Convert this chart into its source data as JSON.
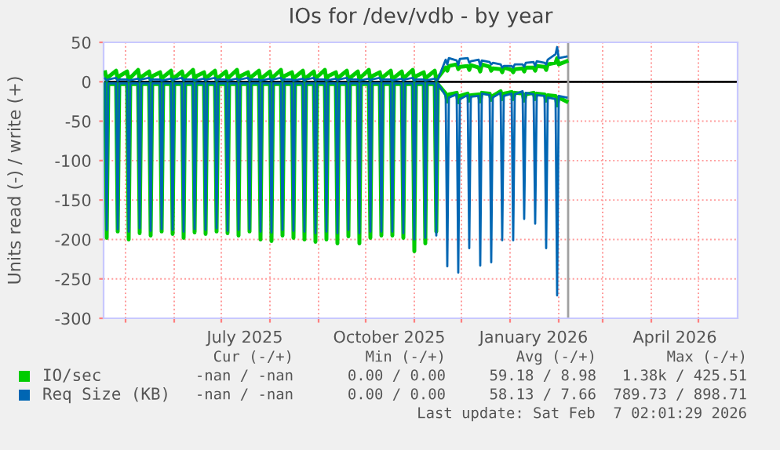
{
  "chart_data": {
    "type": "line",
    "title": "IOs for /dev/vdb - by year",
    "ylabel": "Units read (-) / write (+)",
    "x": [
      "2025-04-18",
      "2025-04-19",
      "2025-04-20",
      "2025-04-25",
      "2025-04-26",
      "2025-04-27",
      "2025-05-02",
      "2025-05-03",
      "2025-05-04",
      "2025-05-09",
      "2025-05-10",
      "2025-05-11",
      "2025-05-16",
      "2025-05-17",
      "2025-05-18",
      "2025-05-23",
      "2025-05-24",
      "2025-05-25",
      "2025-05-30",
      "2025-05-31",
      "2025-06-01",
      "2025-06-06",
      "2025-06-07",
      "2025-06-08",
      "2025-06-13",
      "2025-06-14",
      "2025-06-15",
      "2025-06-20",
      "2025-06-21",
      "2025-06-22",
      "2025-06-27",
      "2025-06-28",
      "2025-06-29",
      "2025-07-04",
      "2025-07-05",
      "2025-07-06",
      "2025-07-11",
      "2025-07-12",
      "2025-07-13",
      "2025-07-18",
      "2025-07-19",
      "2025-07-20",
      "2025-07-25",
      "2025-07-26",
      "2025-07-27",
      "2025-08-01",
      "2025-08-02",
      "2025-08-03",
      "2025-08-08",
      "2025-08-09",
      "2025-08-10",
      "2025-08-15",
      "2025-08-16",
      "2025-08-17",
      "2025-08-22",
      "2025-08-23",
      "2025-08-24",
      "2025-08-29",
      "2025-08-30",
      "2025-08-31",
      "2025-09-05",
      "2025-09-06",
      "2025-09-07",
      "2025-09-12",
      "2025-09-13",
      "2025-09-14",
      "2025-09-19",
      "2025-09-20",
      "2025-09-21",
      "2025-09-26",
      "2025-09-27",
      "2025-09-28",
      "2025-10-03",
      "2025-10-04",
      "2025-10-05",
      "2025-10-10",
      "2025-10-11",
      "2025-10-12",
      "2025-10-17",
      "2025-10-18",
      "2025-10-19",
      "2025-10-24",
      "2025-10-25",
      "2025-10-26",
      "2025-10-31",
      "2025-11-01",
      "2025-11-02",
      "2025-11-07",
      "2025-11-08",
      "2025-11-09",
      "2025-11-14",
      "2025-11-15",
      "2025-11-16",
      "2025-11-21",
      "2025-11-22",
      "2025-11-23",
      "2025-11-28",
      "2025-11-29",
      "2025-11-30",
      "2025-12-05",
      "2025-12-06",
      "2025-12-07",
      "2025-12-12",
      "2025-12-13",
      "2025-12-14",
      "2025-12-19",
      "2025-12-20",
      "2025-12-21",
      "2025-12-26",
      "2025-12-27",
      "2025-12-28",
      "2026-01-02",
      "2026-01-03",
      "2026-01-04",
      "2026-01-09",
      "2026-01-10",
      "2026-01-11",
      "2026-01-16",
      "2026-01-17",
      "2026-01-18",
      "2026-01-23",
      "2026-01-24",
      "2026-01-25",
      "2026-01-30",
      "2026-01-31",
      "2026-02-01",
      "2026-02-06"
    ],
    "series": [
      {
        "name": "IO/sec",
        "color": "#00cc00",
        "values": [
          12,
          2,
          6,
          14,
          3,
          7,
          13,
          2,
          5,
          15,
          3,
          6,
          13,
          2,
          7,
          12,
          3,
          6,
          14,
          2,
          5,
          13,
          3,
          6,
          15,
          2,
          7,
          12,
          3,
          6,
          14,
          2,
          5,
          13,
          3,
          6,
          15,
          2,
          7,
          12,
          3,
          6,
          14,
          2,
          5,
          13,
          3,
          6,
          15,
          2,
          7,
          12,
          3,
          6,
          14,
          2,
          5,
          13,
          3,
          6,
          15,
          2,
          7,
          12,
          3,
          6,
          14,
          2,
          5,
          13,
          3,
          6,
          15,
          2,
          7,
          12,
          3,
          6,
          14,
          2,
          5,
          13,
          3,
          6,
          15,
          2,
          7,
          12,
          3,
          6,
          14,
          2,
          5,
          18,
          14,
          20,
          22,
          16,
          19,
          20,
          15,
          21,
          18,
          13,
          22,
          19,
          14,
          17,
          16,
          12,
          18,
          15,
          12,
          16,
          17,
          13,
          18,
          18,
          14,
          20,
          19,
          15,
          22,
          24,
          30,
          22,
          26
        ]
      },
      {
        "color": "#00cc00",
        "values": [
          -3,
          -198,
          -3,
          -3,
          -190,
          -3,
          -3,
          -200,
          -3,
          -3,
          -192,
          -3,
          -3,
          -195,
          -3,
          -3,
          -190,
          -3,
          -3,
          -193,
          -3,
          -3,
          -198,
          -3,
          -3,
          -191,
          -3,
          -3,
          -193,
          -3,
          -3,
          -190,
          -3,
          -3,
          -192,
          -3,
          -3,
          -195,
          -3,
          -3,
          -190,
          -3,
          -3,
          -200,
          -3,
          -3,
          -202,
          -3,
          -3,
          -195,
          -3,
          -3,
          -198,
          -3,
          -3,
          -200,
          -3,
          -3,
          -203,
          -3,
          -3,
          -200,
          -3,
          -3,
          -205,
          -3,
          -3,
          -196,
          -3,
          -3,
          -205,
          -3,
          -3,
          -198,
          -3,
          -3,
          -195,
          -3,
          -3,
          -195,
          -3,
          -3,
          -198,
          -3,
          -3,
          -215,
          -3,
          -3,
          -205,
          -3,
          -3,
          -190,
          -3,
          -15,
          -25,
          -16,
          -14,
          -26,
          -18,
          -15,
          -24,
          -17,
          -16,
          -25,
          -14,
          -15,
          -23,
          -18,
          -12,
          -22,
          -15,
          -13,
          -22,
          -14,
          -15,
          -24,
          -16,
          -14,
          -22,
          -15,
          -16,
          -24,
          -17,
          -18,
          -30,
          -20,
          -25
        ]
      },
      {
        "name": "Req Size (KB)",
        "color": "#0066b3",
        "values": [
          4,
          1,
          3,
          5,
          1,
          3,
          3,
          1,
          2,
          4,
          1,
          3,
          5,
          1,
          3,
          3,
          1,
          2,
          4,
          1,
          3,
          5,
          1,
          3,
          3,
          1,
          2,
          4,
          1,
          3,
          5,
          1,
          3,
          3,
          1,
          2,
          4,
          1,
          3,
          5,
          1,
          3,
          3,
          1,
          2,
          4,
          1,
          3,
          5,
          1,
          3,
          3,
          1,
          2,
          4,
          1,
          3,
          5,
          1,
          3,
          3,
          1,
          2,
          4,
          1,
          3,
          5,
          1,
          3,
          3,
          1,
          2,
          4,
          1,
          3,
          5,
          1,
          3,
          3,
          1,
          2,
          4,
          1,
          3,
          5,
          1,
          3,
          3,
          1,
          2,
          4,
          1,
          3,
          28,
          22,
          30,
          27,
          21,
          29,
          30,
          24,
          26,
          28,
          20,
          27,
          25,
          22,
          24,
          22,
          18,
          20,
          20,
          18,
          22,
          22,
          19,
          24,
          25,
          20,
          26,
          24,
          22,
          28,
          35,
          44,
          30,
          32
        ]
      },
      {
        "color": "#0066b3",
        "values": [
          -2,
          -188,
          -2,
          -2,
          -187,
          -2,
          -2,
          -190,
          -2,
          -2,
          -186,
          -2,
          -2,
          -189,
          -2,
          -2,
          -187,
          -2,
          -2,
          -188,
          -2,
          -2,
          -190,
          -2,
          -2,
          -187,
          -2,
          -2,
          -188,
          -2,
          -2,
          -186,
          -2,
          -2,
          -189,
          -2,
          -2,
          -188,
          -2,
          -2,
          -187,
          -2,
          -2,
          -190,
          -2,
          -2,
          -191,
          -2,
          -2,
          -188,
          -2,
          -2,
          -189,
          -2,
          -2,
          -190,
          -2,
          -2,
          -192,
          -2,
          -2,
          -190,
          -2,
          -2,
          -192,
          -2,
          -2,
          -188,
          -2,
          -2,
          -192,
          -2,
          -2,
          -190,
          -2,
          -2,
          -190,
          -2,
          -2,
          -190,
          -2,
          -2,
          -192,
          -2,
          -2,
          -200,
          -2,
          -2,
          -198,
          -2,
          -2,
          -195,
          -2,
          -18,
          -234,
          -20,
          -16,
          -242,
          -22,
          -17,
          -211,
          -19,
          -18,
          -233,
          -15,
          -17,
          -229,
          -20,
          -14,
          -201,
          -18,
          -15,
          -201,
          -16,
          -12,
          -174,
          -14,
          -16,
          -180,
          -17,
          -18,
          -211,
          -20,
          -22,
          -271,
          -18,
          -20
        ]
      }
    ],
    "xlim": [
      "2025-04-17",
      "2026-05-26"
    ],
    "xticks": [
      {
        "value": "2025-05-01",
        "label": null
      },
      {
        "value": "2025-06-01",
        "label": null
      },
      {
        "value": "2025-07-01",
        "label": null
      },
      {
        "value": "2025-07-16",
        "label": "July 2025"
      },
      {
        "value": "2025-08-01",
        "label": null
      },
      {
        "value": "2025-09-01",
        "label": null
      },
      {
        "value": "2025-10-01",
        "label": null
      },
      {
        "value": "2025-10-16",
        "label": "October 2025"
      },
      {
        "value": "2025-11-01",
        "label": null
      },
      {
        "value": "2025-12-01",
        "label": null
      },
      {
        "value": "2026-01-01",
        "label": null
      },
      {
        "value": "2026-01-16",
        "label": "January 2026"
      },
      {
        "value": "2026-02-01",
        "label": null
      },
      {
        "value": "2026-03-01",
        "label": null
      },
      {
        "value": "2026-04-01",
        "label": null
      },
      {
        "value": "2026-04-16",
        "label": "April 2026"
      },
      {
        "value": "2026-05-01",
        "label": null
      }
    ],
    "ylim": [
      -300,
      50
    ],
    "yticks": [
      -300,
      -250,
      -200,
      -150,
      -100,
      -50,
      0,
      50
    ],
    "ref_lines": [
      {
        "axis": "y",
        "value": 0,
        "color": "#000000"
      },
      {
        "axis": "x",
        "value": "2026-02-07",
        "color": "#a0a0a0"
      }
    ],
    "grid": true,
    "legend": "bottom",
    "marker": "none",
    "line_style": "solid",
    "annotations": [
      "Cur (-/+)",
      "Min (-/+)",
      "Avg (-/+)",
      "Max (-/+)",
      "-nan / -nan",
      "0.00 / 0.00",
      "59.18 / 8.98",
      "1.38k / 425.51",
      "-nan / -nan",
      "0.00 / 0.00",
      "58.13 / 7.66",
      "789.73 / 898.71",
      "Last update: Sat Feb  7 02:01:29 2026"
    ]
  }
}
